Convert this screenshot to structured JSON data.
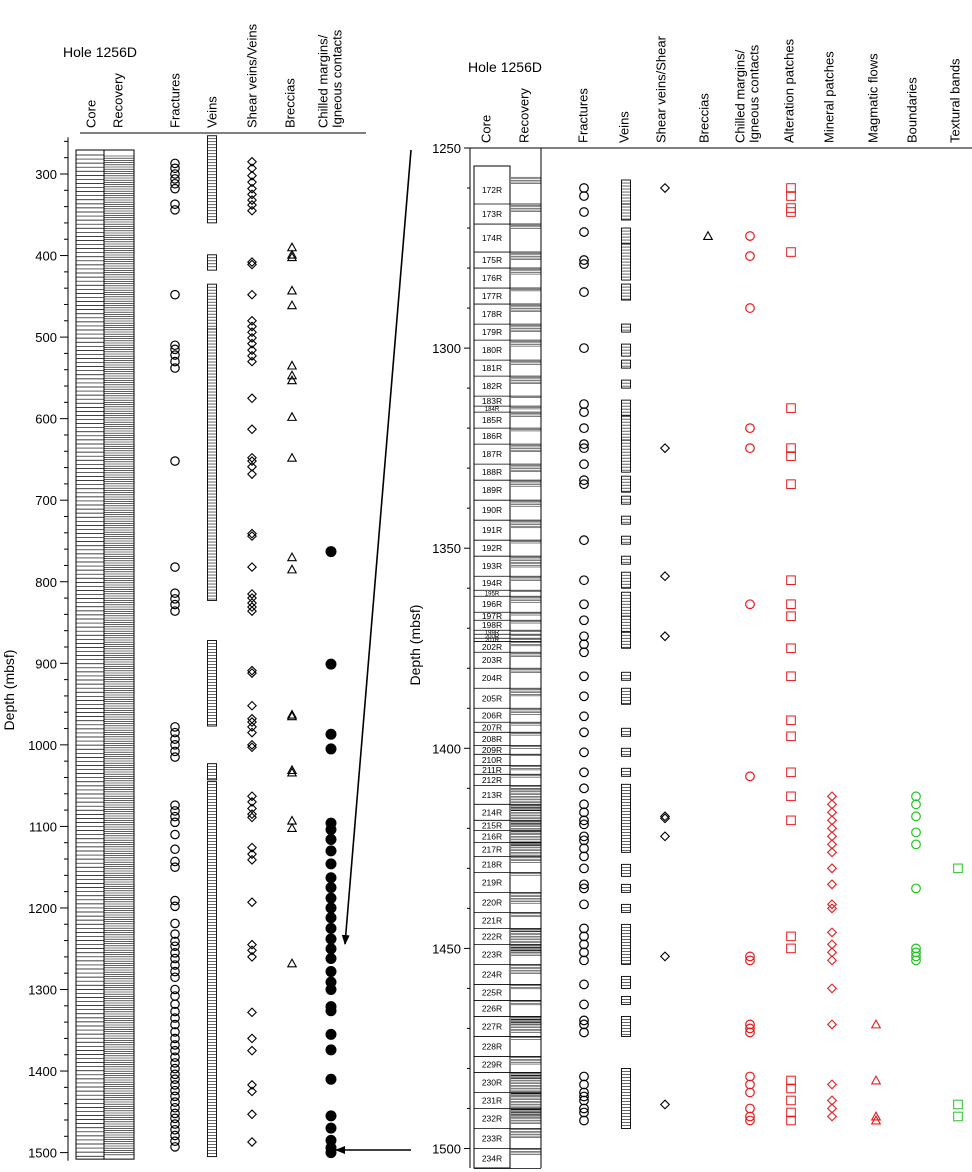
{
  "chart_data": [
    {
      "type": "scatter",
      "title": "Hole 1256D",
      "ylabel": "Depth (mbsf)",
      "ylim": [
        255,
        1510
      ],
      "y_ticks": [
        300,
        400,
        500,
        600,
        700,
        800,
        900,
        1000,
        1100,
        1200,
        1300,
        1400,
        1500
      ],
      "columns": [
        "Core",
        "Recovery",
        "Fractures",
        "Veins",
        "Shear veins/Veins",
        "Breccias",
        "Chilled margins/ Igneous contacts"
      ],
      "series": [
        {
          "name": "Fractures",
          "marker": "circle",
          "color": "#000000",
          "y": [
            287,
            293,
            300,
            306,
            312,
            318,
            337,
            344,
            448,
            510,
            515,
            522,
            530,
            538,
            652,
            782,
            814,
            821,
            828,
            836,
            978,
            985,
            993,
            1000,
            1008,
            1015,
            1074,
            1081,
            1088,
            1095,
            1110,
            1128,
            1143,
            1150,
            1191,
            1198,
            1219,
            1232,
            1241,
            1247,
            1255,
            1262,
            1270,
            1278,
            1285,
            1300,
            1308,
            1318,
            1327,
            1335,
            1343,
            1352,
            1360,
            1368,
            1375,
            1383,
            1390,
            1397,
            1404,
            1410,
            1417,
            1424,
            1431,
            1438,
            1445,
            1452,
            1458,
            1465,
            1472,
            1479,
            1486,
            1493
          ]
        },
        {
          "name": "Veins",
          "marker": "square",
          "color": "#000000",
          "spans": [
            [
              258,
              355
            ],
            [
              404,
              413
            ],
            [
              440,
              685
            ],
            [
              495,
              818
            ],
            [
              877,
              972
            ],
            [
              1028,
              1038
            ],
            [
              1050,
              1500
            ]
          ]
        },
        {
          "name": "Shear veins/Veins",
          "marker": "diamond",
          "color": "#000000",
          "y": [
            285,
            293,
            302,
            310,
            318,
            325,
            332,
            338,
            345,
            408,
            411,
            448,
            480,
            487,
            494,
            501,
            508,
            516,
            523,
            530,
            575,
            613,
            648,
            652,
            659,
            668,
            741,
            744,
            782,
            815,
            820,
            826,
            831,
            836,
            909,
            912,
            952,
            968,
            972,
            978,
            985,
            1000,
            1003,
            1063,
            1070,
            1078,
            1085,
            1089,
            1126,
            1134,
            1141,
            1193,
            1245,
            1252,
            1260,
            1328,
            1360,
            1375,
            1417,
            1425,
            1453,
            1487
          ]
        },
        {
          "name": "Breccias",
          "marker": "triangle",
          "color": "#000000",
          "y": [
            390,
            399,
            402,
            443,
            461,
            535,
            547,
            553,
            598,
            648,
            963,
            965,
            1031,
            1034,
            1093,
            1102,
            1268,
            770,
            785
          ]
        },
        {
          "name": "Chilled margins/ Igneous contacts",
          "marker": "filled-circle",
          "color": "#000000",
          "y": [
            763,
            901,
            987,
            1005,
            1096,
            1104,
            1116,
            1130,
            1146,
            1163,
            1175,
            1188,
            1200,
            1212,
            1225,
            1238,
            1250,
            1262,
            1278,
            1291,
            1300,
            1321,
            1326,
            1355,
            1374,
            1410,
            1455,
            1470,
            1485,
            1494,
            1500
          ]
        }
      ]
    },
    {
      "type": "scatter",
      "title": "Hole 1256D",
      "ylabel": "Depth (mbsf)",
      "ylim": [
        1250,
        1505
      ],
      "y_ticks": [
        1250,
        1300,
        1350,
        1400,
        1450,
        1500
      ],
      "columns": [
        "Core",
        "Recovery",
        "Fractures",
        "Veins",
        "Shear veins/Shear",
        "Breccias",
        "Chilled margins/ Igneous contacts",
        "Alteration patches",
        "Mineral patches",
        "Magmatic flows",
        "Boundaries",
        "Textural bands"
      ],
      "cores": [
        {
          "label": "172R",
          "top": 1257,
          "bottom": 1264
        },
        {
          "label": "173R",
          "top": 1264,
          "bottom": 1269
        },
        {
          "label": "174R",
          "top": 1269,
          "bottom": 1276
        },
        {
          "label": "175R",
          "top": 1276,
          "bottom": 1280
        },
        {
          "label": "176R",
          "top": 1280,
          "bottom": 1285
        },
        {
          "label": "177R",
          "top": 1285,
          "bottom": 1289
        },
        {
          "label": "178R",
          "top": 1289,
          "bottom": 1294
        },
        {
          "label": "179R",
          "top": 1294,
          "bottom": 1298
        },
        {
          "label": "180R",
          "top": 1298,
          "bottom": 1303
        },
        {
          "label": "181R",
          "top": 1303,
          "bottom": 1307
        },
        {
          "label": "182R",
          "top": 1307,
          "bottom": 1312
        },
        {
          "label": "183R",
          "top": 1312,
          "bottom": 1314.5
        },
        {
          "label": "184R",
          "top": 1314.5,
          "bottom": 1316
        },
        {
          "label": "185R",
          "top": 1316,
          "bottom": 1320
        },
        {
          "label": "186R",
          "top": 1320,
          "bottom": 1324
        },
        {
          "label": "187R",
          "top": 1324,
          "bottom": 1329
        },
        {
          "label": "188R",
          "top": 1329,
          "bottom": 1333
        },
        {
          "label": "189R",
          "top": 1333,
          "bottom": 1338
        },
        {
          "label": "190R",
          "top": 1338,
          "bottom": 1343
        },
        {
          "label": "191R",
          "top": 1343,
          "bottom": 1348
        },
        {
          "label": "192R",
          "top": 1348,
          "bottom": 1352
        },
        {
          "label": "193R",
          "top": 1352,
          "bottom": 1357
        },
        {
          "label": "194R",
          "top": 1357,
          "bottom": 1360.5
        },
        {
          "label": "195R",
          "top": 1360.5,
          "bottom": 1362
        },
        {
          "label": "196R",
          "top": 1362,
          "bottom": 1366
        },
        {
          "label": "197R",
          "top": 1366,
          "bottom": 1368
        },
        {
          "label": "198R",
          "top": 1368,
          "bottom": 1370.5
        },
        {
          "label": "199R",
          "top": 1370.5,
          "bottom": 1371.5
        },
        {
          "label": "200R",
          "top": 1371.5,
          "bottom": 1372.5
        },
        {
          "label": "201R",
          "top": 1372.5,
          "bottom": 1373.3
        },
        {
          "label": "202R",
          "top": 1373.3,
          "bottom": 1376
        },
        {
          "label": "203R",
          "top": 1376,
          "bottom": 1380
        },
        {
          "label": "204R",
          "top": 1380,
          "bottom": 1385
        },
        {
          "label": "205R",
          "top": 1385,
          "bottom": 1390
        },
        {
          "label": "206R",
          "top": 1390,
          "bottom": 1393.5
        },
        {
          "label": "207R",
          "top": 1393.5,
          "bottom": 1396
        },
        {
          "label": "208R",
          "top": 1396,
          "bottom": 1399.3
        },
        {
          "label": "209R",
          "top": 1399.3,
          "bottom": 1401.5
        },
        {
          "label": "210R",
          "top": 1401.5,
          "bottom": 1404.3
        },
        {
          "label": "211R",
          "top": 1404.3,
          "bottom": 1406.5
        },
        {
          "label": "212R",
          "top": 1406.5,
          "bottom": 1409.3
        },
        {
          "label": "213R",
          "top": 1409.3,
          "bottom": 1414
        },
        {
          "label": "214R",
          "top": 1414,
          "bottom": 1418
        },
        {
          "label": "215R",
          "top": 1418,
          "bottom": 1420.5
        },
        {
          "label": "216R",
          "top": 1420.5,
          "bottom": 1423.5
        },
        {
          "label": "217R",
          "top": 1423.5,
          "bottom": 1427
        },
        {
          "label": "218R",
          "top": 1427,
          "bottom": 1431
        },
        {
          "label": "219R",
          "top": 1431,
          "bottom": 1436
        },
        {
          "label": "220R",
          "top": 1436,
          "bottom": 1441
        },
        {
          "label": "221R",
          "top": 1441,
          "bottom": 1445
        },
        {
          "label": "222R",
          "top": 1445,
          "bottom": 1449
        },
        {
          "label": "223R",
          "top": 1449,
          "bottom": 1454
        },
        {
          "label": "224R",
          "top": 1454,
          "bottom": 1459
        },
        {
          "label": "225R",
          "top": 1459,
          "bottom": 1463
        },
        {
          "label": "226R",
          "top": 1463,
          "bottom": 1467
        },
        {
          "label": "227R",
          "top": 1467,
          "bottom": 1472
        },
        {
          "label": "228R",
          "top": 1472,
          "bottom": 1477
        },
        {
          "label": "229R",
          "top": 1477,
          "bottom": 1481
        },
        {
          "label": "230R",
          "top": 1481,
          "bottom": 1486
        },
        {
          "label": "231R",
          "top": 1486,
          "bottom": 1490
        },
        {
          "label": "232R",
          "top": 1490,
          "bottom": 1495
        },
        {
          "label": "233R",
          "top": 1495,
          "bottom": 1500
        },
        {
          "label": "234R",
          "top": 1500,
          "bottom": 1505
        }
      ],
      "series": [
        {
          "name": "Fractures",
          "marker": "circle",
          "color": "#000000",
          "y": [
            1260,
            1262,
            1266,
            1271,
            1278,
            1279,
            1286,
            1300,
            1314,
            1316,
            1320,
            1324,
            1325,
            1329,
            1333,
            1334,
            1348,
            1358,
            1364,
            1368,
            1372,
            1374,
            1376,
            1382,
            1387,
            1392,
            1396,
            1401,
            1406,
            1410,
            1414,
            1416,
            1418,
            1419,
            1422,
            1423,
            1425,
            1427,
            1430,
            1434,
            1435,
            1439,
            1445,
            1447,
            1449,
            1451,
            1453,
            1459,
            1464,
            1468,
            1469,
            1471,
            1482,
            1484,
            1486,
            1487,
            1488,
            1490,
            1491,
            1493
          ]
        },
        {
          "name": "Veins",
          "marker": "square",
          "color": "#000000",
          "spans": [
            [
              1259,
              1263
            ],
            [
              1265,
              1267
            ],
            [
              1271,
              1273
            ],
            [
              1275,
              1282
            ],
            [
              1285,
              1287
            ],
            [
              1295,
              1295
            ],
            [
              1300,
              1301
            ],
            [
              1304,
              1304
            ],
            [
              1309,
              1309
            ],
            [
              1314,
              1316
            ],
            [
              1318,
              1322
            ],
            [
              1324,
              1330
            ],
            [
              1333,
              1335
            ],
            [
              1338,
              1338
            ],
            [
              1343,
              1343
            ],
            [
              1348,
              1348
            ],
            [
              1353,
              1353
            ],
            [
              1357,
              1359
            ],
            [
              1362,
              1366
            ],
            [
              1368,
              1370
            ],
            [
              1372,
              1374
            ],
            [
              1382,
              1382
            ],
            [
              1386,
              1388
            ],
            [
              1396,
              1396
            ],
            [
              1401,
              1401
            ],
            [
              1406,
              1406
            ],
            [
              1410,
              1425
            ],
            [
              1430,
              1431
            ],
            [
              1435,
              1435
            ],
            [
              1440,
              1440
            ],
            [
              1445,
              1453
            ],
            [
              1458,
              1459
            ],
            [
              1463,
              1463
            ],
            [
              1468,
              1471
            ],
            [
              1481,
              1494
            ]
          ]
        },
        {
          "name": "Shear veins/Shear",
          "marker": "diamond",
          "color": "#000000",
          "y": [
            1260,
            1325,
            1357,
            1372,
            1417,
            1417.5,
            1422,
            1452,
            1489
          ]
        },
        {
          "name": "Breccias",
          "marker": "triangle",
          "color": "#000000",
          "y": [
            1272
          ]
        },
        {
          "name": "Chilled margins/ Igneous contacts",
          "marker": "circle",
          "color": "#e8191c",
          "y": [
            1272,
            1277,
            1290,
            1320,
            1325,
            1364,
            1407,
            1452,
            1453,
            1469,
            1470,
            1471,
            1482,
            1484,
            1486,
            1490,
            1492,
            1493
          ]
        },
        {
          "name": "Alteration patches",
          "marker": "square",
          "color": "#e8191c",
          "y": [
            1260,
            1262,
            1265,
            1266,
            1276,
            1315,
            1325,
            1327,
            1334,
            1358,
            1364,
            1367,
            1375,
            1382,
            1393,
            1397,
            1406,
            1412,
            1418,
            1447,
            1450,
            1483,
            1485,
            1488,
            1491,
            1493
          ]
        },
        {
          "name": "Mineral patches",
          "marker": "diamond",
          "color": "#e8191c",
          "y": [
            1412,
            1414,
            1416,
            1418,
            1420,
            1422,
            1424,
            1426,
            1430,
            1434,
            1439,
            1440,
            1446,
            1449,
            1451,
            1453,
            1460,
            1469,
            1484,
            1488,
            1490,
            1492
          ]
        },
        {
          "name": "Magmatic flows",
          "marker": "triangle",
          "color": "#e8191c",
          "y": [
            1469,
            1483,
            1492,
            1493
          ]
        },
        {
          "name": "Boundaries",
          "marker": "circle",
          "color": "#22c322",
          "y": [
            1412,
            1414,
            1417,
            1421,
            1424,
            1435,
            1450,
            1451,
            1452,
            1453
          ]
        },
        {
          "name": "Textural bands",
          "marker": "square",
          "color": "#22c322",
          "y": [
            1430,
            1489,
            1492
          ]
        }
      ]
    }
  ]
}
